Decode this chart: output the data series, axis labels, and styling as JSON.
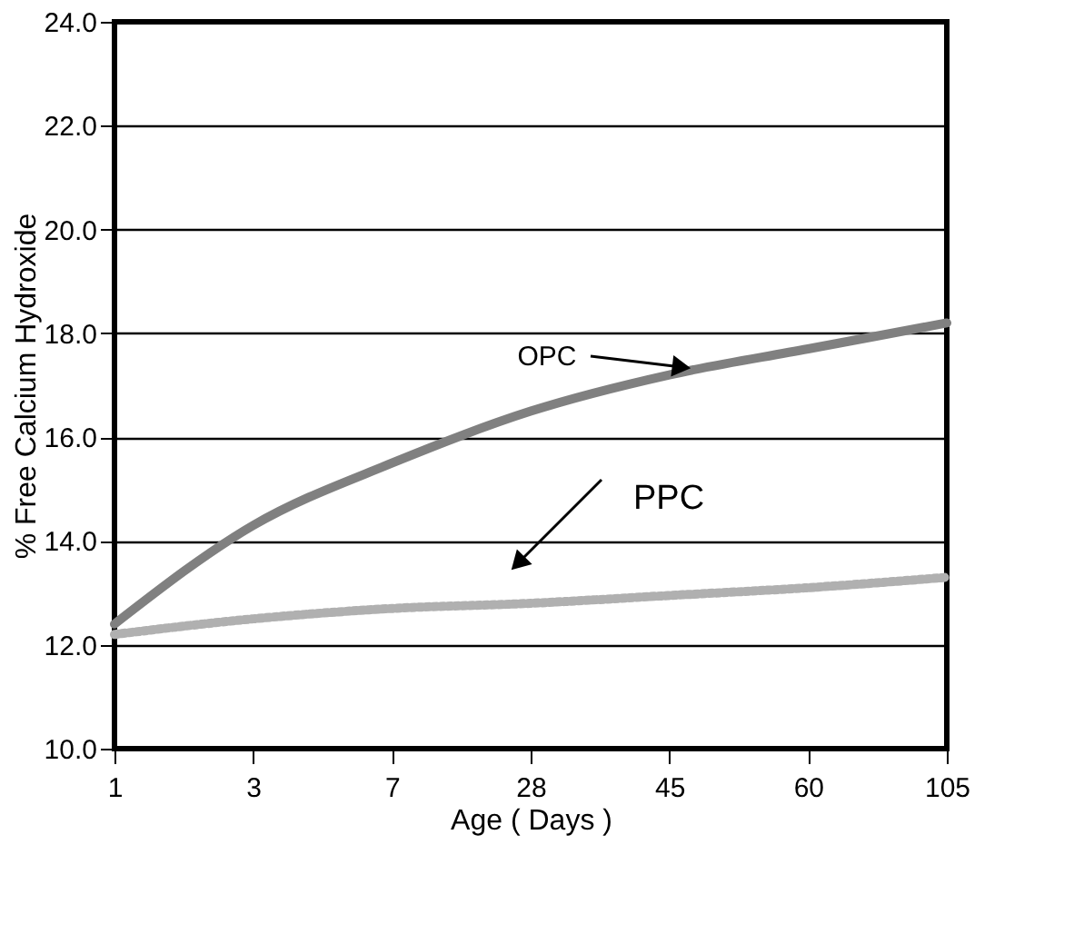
{
  "chart_data": {
    "type": "line",
    "xlabel": "Age ( Days )",
    "ylabel": "% Free Calcium Hydroxide",
    "categories": [
      "1",
      "3",
      "7",
      "28",
      "45",
      "60",
      "105"
    ],
    "series": [
      {
        "name": "OPC",
        "color": "#808080",
        "line_style": "solid",
        "values": [
          12.4,
          14.3,
          15.5,
          16.5,
          17.2,
          17.7,
          18.2
        ]
      },
      {
        "name": "PPC",
        "color": "#b0b0b0",
        "line_style": "dotted",
        "values": [
          12.2,
          12.5,
          12.7,
          12.8,
          12.95,
          13.1,
          13.3
        ]
      }
    ],
    "ylim": [
      10,
      24
    ],
    "yticks": [
      {
        "value": 10,
        "label": "10.0"
      },
      {
        "value": 12,
        "label": "12.0"
      },
      {
        "value": 14,
        "label": "14.0"
      },
      {
        "value": 16,
        "label": "16.0"
      },
      {
        "value": 18,
        "label": "18.0"
      },
      {
        "value": 20,
        "label": "20.0"
      },
      {
        "value": 22,
        "label": "22.0"
      },
      {
        "value": 24,
        "label": "24.0"
      }
    ],
    "grid": "y",
    "legend": false,
    "marker": "none"
  }
}
